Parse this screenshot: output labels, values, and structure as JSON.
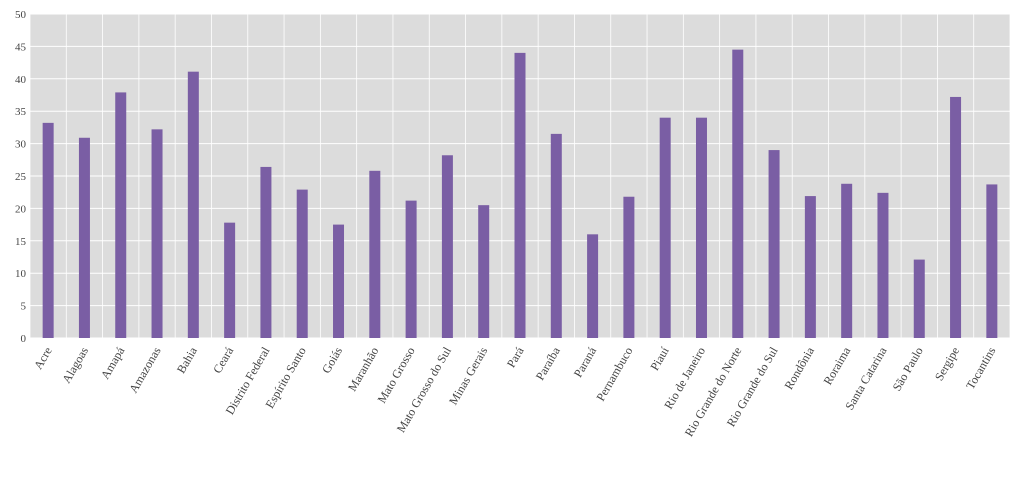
{
  "chart_data": {
    "type": "bar",
    "categories": [
      "Acre",
      "Alagoas",
      "Amapá",
      "Amazonas",
      "Bahia",
      "Ceará",
      "Distrito Federal",
      "Espírito Santo",
      "Goiás",
      "Maranhão",
      "Mato Grosso",
      "Mato Grosso do Sul",
      "Minas Gerais",
      "Pará",
      "Paraíba",
      "Paraná",
      "Pernambuco",
      "Piauí",
      "Rio de Janeiro",
      "Rio Grande do Norte",
      "Rio Grande do Sul",
      "Rondônia",
      "Roraima",
      "Santa Catarina",
      "São Paulo",
      "Sergipe",
      "Tocantins"
    ],
    "values": [
      33.2,
      30.9,
      37.9,
      32.2,
      41.1,
      17.8,
      26.4,
      22.9,
      17.5,
      25.8,
      21.2,
      28.2,
      20.5,
      44.0,
      31.5,
      16.0,
      21.8,
      34.0,
      34.0,
      44.5,
      29.0,
      21.9,
      23.8,
      22.4,
      12.1,
      37.2,
      23.7
    ],
    "ylim": [
      0,
      50
    ],
    "yticks": [
      0,
      5,
      10,
      15,
      20,
      25,
      30,
      35,
      40,
      45,
      50
    ],
    "grid": true,
    "bar_color": "#7a5ea4",
    "background_color": "#dcdcdc",
    "grid_color": "#ffffff"
  }
}
